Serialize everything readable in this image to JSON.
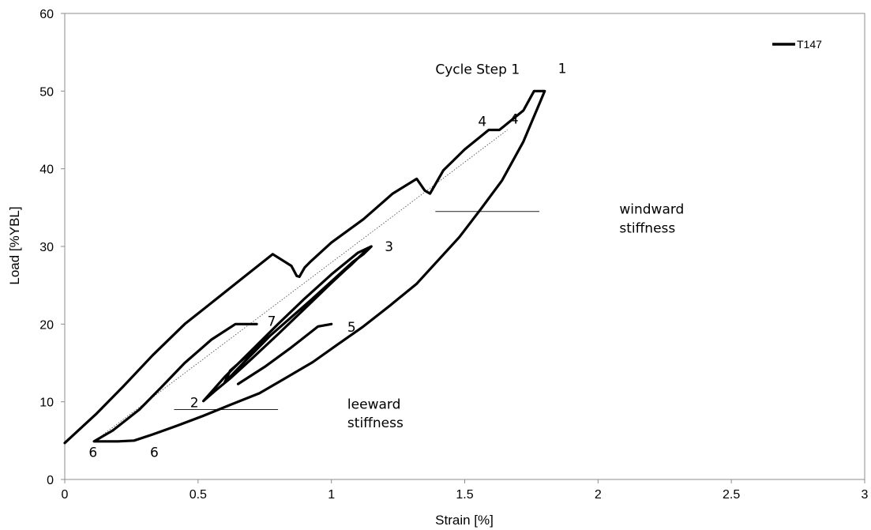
{
  "chart_data": {
    "type": "line",
    "title": "",
    "xlabel": "Strain [%]",
    "ylabel": "Load [%YBL]",
    "xlim": [
      0,
      3
    ],
    "ylim": [
      0,
      60
    ],
    "xticks": [
      0,
      0.5,
      1,
      1.5,
      2,
      2.5,
      3
    ],
    "xtick_labels": [
      "0",
      "0.5",
      "1",
      "1.5",
      "2",
      "2.5",
      "3"
    ],
    "yticks": [
      0,
      10,
      20,
      30,
      40,
      50,
      60
    ],
    "ytick_labels": [
      "0",
      "10",
      "20",
      "30",
      "40",
      "50",
      "60"
    ],
    "grid": false,
    "legend": {
      "position": "top-right"
    },
    "series": [
      {
        "name": "T147",
        "color": "#000000",
        "x": [
          0,
          0.12,
          0.22,
          0.33,
          0.45,
          0.56,
          0.67,
          0.78,
          0.85,
          0.87,
          0.88,
          0.9,
          0.92,
          1.0,
          1.12,
          1.23,
          1.32,
          1.35,
          1.37,
          1.42,
          1.5,
          1.59,
          1.63,
          1.72,
          1.76,
          1.79,
          1.8,
          1.72,
          1.64,
          1.56,
          1.48,
          1.4,
          1.32,
          1.22,
          1.12,
          1.02,
          0.93,
          0.83,
          0.73,
          0.62,
          0.52,
          0.42,
          0.33,
          0.26,
          0.2,
          0.13,
          0.11,
          0.18,
          0.28,
          0.36,
          0.45,
          0.55,
          0.64,
          0.72
        ],
        "y": [
          4.7,
          8.5,
          12,
          16,
          20,
          23,
          26,
          29,
          27.5,
          26.2,
          26.1,
          27.3,
          28,
          30.5,
          33.5,
          36.8,
          38.7,
          37.2,
          36.8,
          39.8,
          42.5,
          45,
          45,
          47.5,
          50,
          50,
          50,
          43.5,
          38.5,
          34.8,
          31.2,
          28.2,
          25.2,
          22.4,
          19.7,
          17.3,
          15.1,
          13.1,
          11.1,
          9.6,
          8.2,
          6.9,
          5.8,
          5,
          4.9,
          4.9,
          4.9,
          6.3,
          9,
          11.8,
          15,
          18,
          20,
          20
        ]
      },
      {
        "name": "",
        "color": "#000000",
        "x": [
          0.52,
          0.6,
          0.7,
          0.8,
          0.9,
          1.0,
          1.1,
          1.15,
          1.12,
          1.08,
          1.0,
          0.92,
          0.82,
          0.72,
          0.62,
          0.6,
          0.67,
          0.77,
          0.87,
          0.97,
          1.07,
          1.13,
          1.1,
          1.0,
          0.9,
          0.8,
          0.7,
          0.62,
          0.56,
          0.52
        ],
        "y": [
          10.1,
          13.2,
          16.6,
          20,
          23.3,
          26.4,
          29.2,
          30,
          29,
          28,
          25.5,
          23,
          20,
          17,
          14,
          12.5,
          15,
          18.5,
          21.5,
          24.5,
          27.5,
          29.5,
          28.5,
          25.3,
          22,
          18.7,
          15.5,
          13,
          11.3,
          10.1
        ]
      },
      {
        "name": "",
        "color": "#000000",
        "x": [
          0.65,
          0.75,
          0.85,
          0.95,
          1.0
        ],
        "y": [
          12.3,
          14.5,
          17,
          19.7,
          20
        ]
      }
    ],
    "reference_lines": [
      {
        "style": "dotted",
        "x": [
          0.11,
          1.66
        ],
        "y": [
          4.9,
          45
        ]
      },
      {
        "style": "solid",
        "x": [
          1.39,
          1.78
        ],
        "y": [
          34.5,
          34.5
        ]
      },
      {
        "style": "solid",
        "x": [
          0.41,
          0.8
        ],
        "y": [
          9,
          9
        ]
      }
    ],
    "annotations": [
      {
        "text": "Cycle Step 1",
        "x": 1.39,
        "y": 52.2
      },
      {
        "text": "1",
        "x": 1.85,
        "y": 52.3
      },
      {
        "text": "4",
        "x": 1.55,
        "y": 45.5
      },
      {
        "text": "4",
        "x": 1.67,
        "y": 45.8
      },
      {
        "text": "3",
        "x": 1.2,
        "y": 29.4
      },
      {
        "text": "7",
        "x": 0.76,
        "y": 19.8
      },
      {
        "text": "5",
        "x": 1.06,
        "y": 19
      },
      {
        "text": "2",
        "x": 0.47,
        "y": 9.3
      },
      {
        "text": "6",
        "x": 0.09,
        "y": 2.9
      },
      {
        "text": "6",
        "x": 0.32,
        "y": 2.9
      },
      {
        "text": "windward",
        "x": 2.08,
        "y": 34.2
      },
      {
        "text": "stiffness",
        "x": 2.08,
        "y": 31.8
      },
      {
        "text": "leeward",
        "x": 1.06,
        "y": 9.1
      },
      {
        "text": "stiffness",
        "x": 1.06,
        "y": 6.7
      }
    ]
  }
}
